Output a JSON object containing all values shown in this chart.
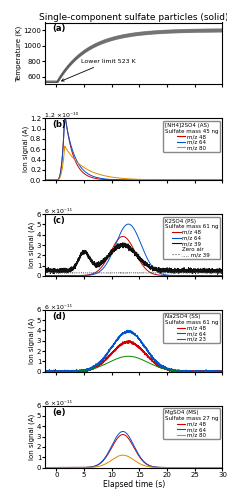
{
  "title": "Single-component sulfate particles (solid)",
  "panel_a": {
    "label": "(a)",
    "ylabel": "Temperature (K)",
    "ylim": [
      500,
      1300
    ],
    "yticks": [
      600,
      800,
      1000,
      1200
    ],
    "annotation": "Lower limit 523 K",
    "bg_color": "#ffffff"
  },
  "panel_b": {
    "label": "(b)",
    "ylabel": "Ion signal (A)",
    "ylim_max": 1.2e-10,
    "scale_label": "1.2 ×10⁻¹⁰",
    "legend_title": "[NH4]2SO4 (AS)",
    "legend_sub": "Sulfate mass 45 ng",
    "lines": [
      {
        "label": "m/z 48",
        "color": "#cc0000"
      },
      {
        "label": "m/z 64",
        "color": "#0055cc"
      },
      {
        "label": "m/z 80",
        "color": "#dd8800"
      }
    ]
  },
  "panel_c": {
    "label": "(c)",
    "ylabel": "Ion signal (A)",
    "ylim_max": 6e-11,
    "scale_label": "6 ×10⁻¹¹",
    "legend_title": "K2SO4 (PS)",
    "legend_sub": "Sulfate mass 61 ng",
    "lines": [
      {
        "label": "m/z 48",
        "color": "#cc0000"
      },
      {
        "label": "m/z 64",
        "color": "#0055cc"
      },
      {
        "label": "m/z 39",
        "color": "#111111"
      },
      {
        "label": "Zero air",
        "color": "none"
      },
      {
        "label": ".... m/z 39",
        "color": "#555555",
        "linestyle": "dotted"
      }
    ]
  },
  "panel_d": {
    "label": "(d)",
    "ylabel": "Ion signal (A)",
    "ylim_max": 6e-11,
    "scale_label": "6 ×10⁻¹¹",
    "legend_title": "Na2SO4 (SS)",
    "legend_sub": "Sulfate mass 61 ng",
    "lines": [
      {
        "label": "m/z 48",
        "color": "#cc0000"
      },
      {
        "label": "m/z 64",
        "color": "#0055cc"
      },
      {
        "label": "m/z 23",
        "color": "#008800"
      }
    ]
  },
  "panel_e": {
    "label": "(e)",
    "ylabel": "Ion signal (A)",
    "ylim_max": 6e-11,
    "scale_label": "6 ×10⁻¹¹",
    "legend_title": "MgSO4 (MS)",
    "legend_sub": "Sulfate mass 27 ng",
    "lines": [
      {
        "label": "m/z 48",
        "color": "#cc0000"
      },
      {
        "label": "m/z 64",
        "color": "#0055cc"
      },
      {
        "label": "m/z 80",
        "color": "#dd8800"
      }
    ]
  },
  "xlim": [
    -2,
    30
  ],
  "xticks": [
    0,
    5,
    10,
    15,
    20,
    25,
    30
  ],
  "xlabel": "Elapsed time (s)"
}
